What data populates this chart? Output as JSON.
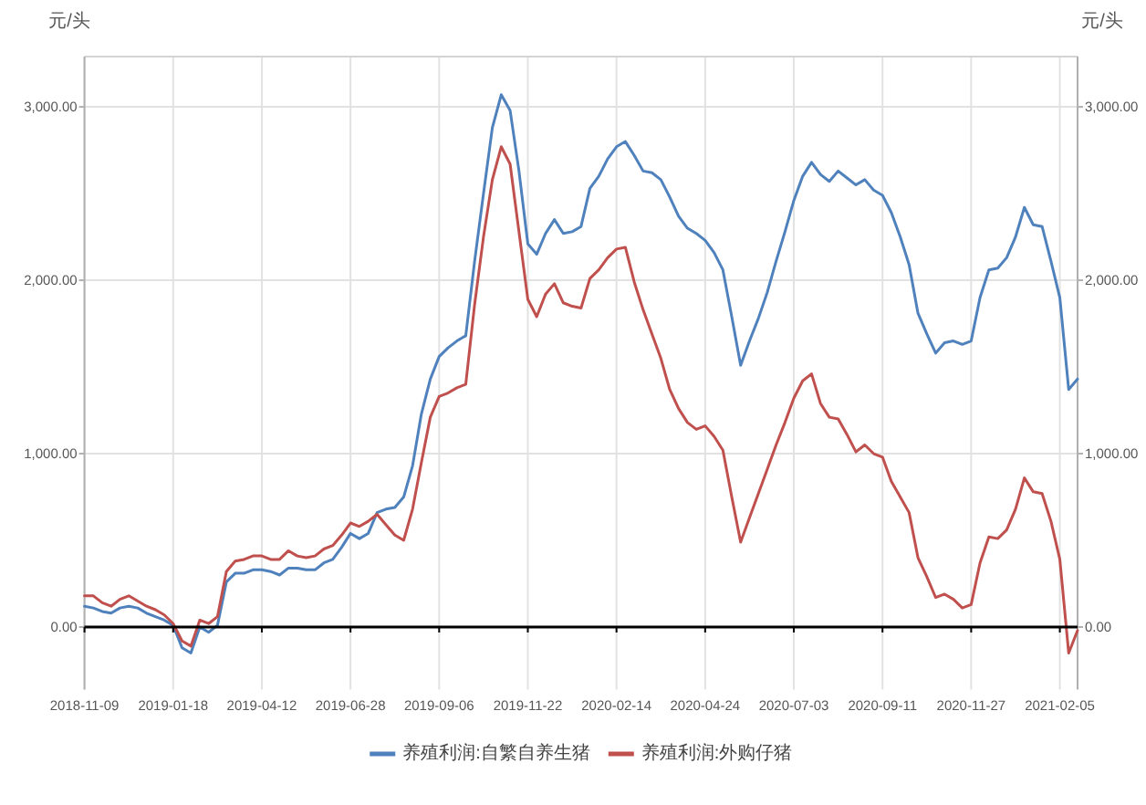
{
  "chart_data": {
    "type": "line",
    "ylabel": "元/头",
    "y2label": "元/头",
    "categories": [
      "2018-11-09",
      null,
      null,
      null,
      null,
      null,
      null,
      null,
      null,
      null,
      "2019-01-18",
      null,
      null,
      null,
      null,
      null,
      null,
      null,
      null,
      null,
      "2019-04-12",
      null,
      null,
      null,
      null,
      null,
      null,
      null,
      null,
      null,
      "2019-06-28",
      null,
      null,
      null,
      null,
      null,
      null,
      null,
      null,
      null,
      "2019-09-06",
      null,
      null,
      null,
      null,
      null,
      null,
      null,
      null,
      null,
      "2019-11-22",
      null,
      null,
      null,
      null,
      null,
      null,
      null,
      null,
      null,
      "2020-02-14",
      null,
      null,
      null,
      null,
      null,
      null,
      null,
      null,
      null,
      "2020-04-24",
      null,
      null,
      null,
      null,
      null,
      null,
      null,
      null,
      null,
      "2020-07-03",
      null,
      null,
      null,
      null,
      null,
      null,
      null,
      null,
      null,
      "2020-09-11",
      null,
      null,
      null,
      null,
      null,
      null,
      null,
      null,
      null,
      "2020-11-27",
      null,
      null,
      null,
      null,
      null,
      null,
      null,
      null,
      null,
      "2021-02-05",
      null,
      null
    ],
    "series": [
      {
        "name": "养殖利润:自繁自养生猪",
        "color": "#4f81bd",
        "values": [
          120,
          110,
          90,
          80,
          110,
          120,
          110,
          80,
          60,
          40,
          10,
          -120,
          -150,
          0,
          -30,
          10,
          260,
          310,
          310,
          330,
          330,
          320,
          300,
          340,
          340,
          330,
          330,
          370,
          390,
          460,
          540,
          510,
          540,
          660,
          680,
          690,
          750,
          930,
          1230,
          1430,
          1560,
          1610,
          1650,
          1680,
          2110,
          2500,
          2880,
          3070,
          2980,
          2630,
          2210,
          2150,
          2270,
          2350,
          2270,
          2280,
          2310,
          2530,
          2600,
          2700,
          2770,
          2800,
          2720,
          2630,
          2620,
          2580,
          2480,
          2370,
          2300,
          2270,
          2230,
          2160,
          2060,
          1790,
          1510,
          1650,
          1780,
          1930,
          2110,
          2280,
          2460,
          2600,
          2680,
          2610,
          2570,
          2630,
          2590,
          2550,
          2580,
          2520,
          2490,
          2390,
          2250,
          2090,
          1810,
          1690,
          1580,
          1640,
          1650,
          1630,
          1650,
          1900,
          2060,
          2070,
          2130,
          2250,
          2420,
          2320,
          2310,
          2110,
          1900,
          1370,
          1430
        ]
      },
      {
        "name": "养殖利润:外购仔猪",
        "color": "#c0504d",
        "values": [
          180,
          180,
          140,
          120,
          160,
          180,
          150,
          120,
          100,
          70,
          20,
          -80,
          -110,
          40,
          20,
          60,
          320,
          380,
          390,
          410,
          410,
          390,
          390,
          440,
          410,
          400,
          410,
          450,
          470,
          530,
          600,
          580,
          610,
          650,
          590,
          530,
          500,
          680,
          950,
          1210,
          1330,
          1350,
          1380,
          1400,
          1860,
          2250,
          2580,
          2770,
          2670,
          2280,
          1890,
          1790,
          1920,
          1980,
          1870,
          1850,
          1840,
          2010,
          2060,
          2130,
          2180,
          2190,
          1990,
          1830,
          1690,
          1550,
          1370,
          1260,
          1180,
          1140,
          1160,
          1100,
          1020,
          750,
          490,
          630,
          770,
          910,
          1050,
          1180,
          1320,
          1420,
          1460,
          1290,
          1210,
          1200,
          1110,
          1010,
          1050,
          1000,
          980,
          840,
          750,
          660,
          400,
          290,
          170,
          190,
          160,
          110,
          130,
          370,
          520,
          510,
          560,
          680,
          860,
          780,
          770,
          610,
          390,
          -150,
          -20
        ]
      }
    ],
    "ylim": [
      -360,
      3290
    ],
    "yticks": [
      {
        "value": 0,
        "label": "0.00"
      },
      {
        "value": 1000,
        "label": "1,000.00"
      },
      {
        "value": 2000,
        "label": "2,000.00"
      },
      {
        "value": 3000,
        "label": "3,000.00"
      }
    ],
    "y2lim": [
      -360,
      3290
    ],
    "y2ticks": [
      {
        "value": 0,
        "label": "0.00"
      },
      {
        "value": 1000,
        "label": "1,000.00"
      },
      {
        "value": 2000,
        "label": "2,000.00"
      },
      {
        "value": 3000,
        "label": "3,000.00"
      }
    ],
    "grid": true,
    "legend": "bottom"
  }
}
